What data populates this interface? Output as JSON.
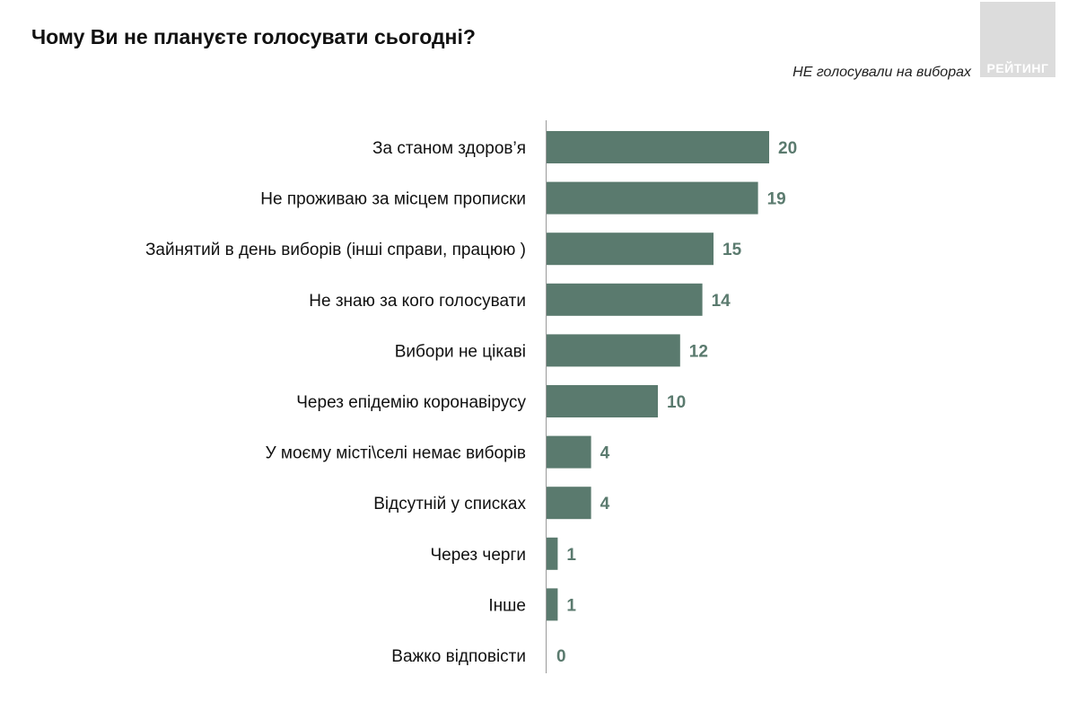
{
  "header": {
    "title": "Чому Ви не плануєте голосувати сьогодні?",
    "subtitle": "НЕ голосували на виборах",
    "logo_text": "РЕЙТИНГ"
  },
  "colors": {
    "bar": "#5a7a6e",
    "value_label": "#5a7a6e",
    "axis": "#9a9a9a"
  },
  "chart_data": {
    "type": "bar",
    "orientation": "horizontal",
    "title": "Чому Ви не плануєте голосувати сьогодні?",
    "subtitle": "НЕ голосували на виборах",
    "xlabel": "",
    "ylabel": "",
    "xlim": [
      0,
      20
    ],
    "grid": false,
    "legend": "none",
    "categories": [
      "За станом здоров’я",
      "Не проживаю за місцем прописки",
      "Зайнятий в день виборів (інші справи, працюю )",
      "Не знаю за кого голосувати",
      "Вибори не цікаві",
      "Через епідемію коронавірусу",
      "У моєму місті\\селі немає виборів",
      "Відсутній у списках",
      "Через черги",
      "Інше",
      "Важко відповісти"
    ],
    "values": [
      20,
      19,
      15,
      14,
      12,
      10,
      4,
      4,
      1,
      1,
      0
    ],
    "value_labels": [
      "20",
      "19",
      "15",
      "14",
      "12",
      "10",
      "4",
      "4",
      "1",
      "1",
      "0"
    ]
  }
}
